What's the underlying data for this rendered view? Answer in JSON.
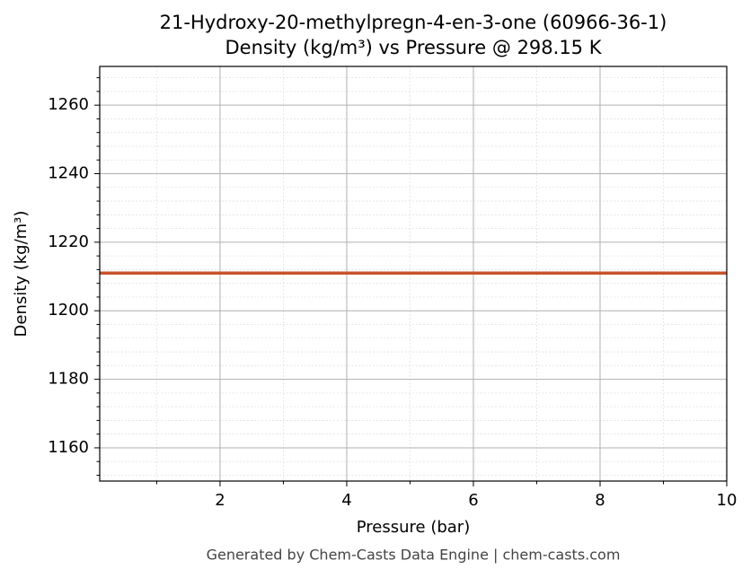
{
  "chart_data": {
    "type": "line",
    "title": "21-Hydroxy-20-methylpregn-4-en-3-one (60966-36-1)",
    "subtitle": "Density (kg/m³) vs Pressure @ 298.15 K",
    "x_label": "Pressure (bar)",
    "y_label": "Density (kg/m³)",
    "footer": "Generated by Chem-Casts Data Engine | chem-casts.com",
    "x": [
      0.1,
      10
    ],
    "series": [
      {
        "name": "Density",
        "color": "#c8532b",
        "values": [
          1211,
          1211
        ]
      }
    ],
    "xlim": [
      0.1,
      10
    ],
    "xticks": [
      2,
      4,
      6,
      8,
      10
    ],
    "xminorticks": [
      1,
      3,
      5,
      7,
      9
    ],
    "ylim": [
      1150.3,
      1271.3
    ],
    "yticks": [
      1160,
      1180,
      1200,
      1220,
      1240,
      1260
    ],
    "yminorticks": [
      1152,
      1156,
      1164,
      1168,
      1172,
      1176,
      1184,
      1188,
      1192,
      1196,
      1204,
      1208,
      1212,
      1216,
      1224,
      1228,
      1232,
      1236,
      1244,
      1248,
      1252,
      1256,
      1264,
      1268
    ],
    "grid": true
  }
}
